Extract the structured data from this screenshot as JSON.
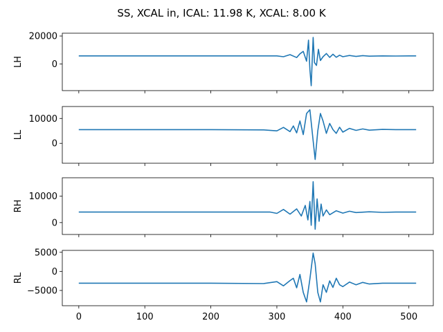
{
  "figure": {
    "title": "SS, XCAL in, ICAL: 11.98 K, XCAL: 8.00 K"
  },
  "chart_data": [
    {
      "type": "line",
      "ylabel": "LH",
      "xlim": [
        -25,
        537
      ],
      "ylim": [
        -19000,
        22000
      ],
      "yticks": [
        0,
        20000
      ],
      "baseline": 5800,
      "x_tick_labels_visible": false,
      "x": [
        0,
        100,
        200,
        300,
        310,
        320,
        330,
        335,
        340,
        345,
        348,
        350,
        352,
        355,
        357,
        360,
        363,
        366,
        370,
        375,
        380,
        385,
        390,
        395,
        400,
        410,
        420,
        430,
        440,
        460,
        480,
        500,
        511
      ],
      "y": [
        5800,
        5800,
        5800,
        5800,
        5200,
        6700,
        4600,
        7300,
        9000,
        2000,
        17000,
        -4000,
        -15500,
        19000,
        1000,
        -1000,
        10500,
        2500,
        5200,
        7500,
        4700,
        7000,
        4800,
        6300,
        5200,
        6100,
        5400,
        6000,
        5600,
        5800,
        5700,
        5800,
        5800
      ]
    },
    {
      "type": "line",
      "ylabel": "LL",
      "xlim": [
        -25,
        537
      ],
      "ylim": [
        -8000,
        14800
      ],
      "yticks": [
        0,
        10000
      ],
      "baseline": 5500,
      "x_tick_labels_visible": false,
      "x": [
        0,
        100,
        200,
        280,
        300,
        310,
        320,
        325,
        330,
        335,
        340,
        345,
        350,
        355,
        358,
        362,
        366,
        370,
        375,
        380,
        385,
        390,
        395,
        400,
        410,
        420,
        430,
        440,
        460,
        480,
        500,
        511
      ],
      "y": [
        5500,
        5500,
        5500,
        5400,
        5000,
        6400,
        4700,
        7000,
        4200,
        9000,
        3500,
        12000,
        13500,
        1000,
        -6500,
        5000,
        12000,
        9000,
        4000,
        8000,
        5500,
        4000,
        6500,
        4500,
        6000,
        5200,
        5800,
        5300,
        5600,
        5500,
        5500,
        5500
      ]
    },
    {
      "type": "line",
      "ylabel": "RH",
      "xlim": [
        -25,
        537
      ],
      "ylim": [
        -4500,
        17000
      ],
      "yticks": [
        0,
        10000
      ],
      "baseline": 4000,
      "x_tick_labels_visible": false,
      "x": [
        0,
        100,
        200,
        290,
        300,
        310,
        320,
        330,
        337,
        343,
        347,
        350,
        352,
        355,
        358,
        361,
        364,
        367,
        370,
        375,
        380,
        390,
        400,
        410,
        420,
        440,
        460,
        480,
        500,
        511
      ],
      "y": [
        4000,
        4000,
        4000,
        4000,
        3500,
        5000,
        3200,
        5200,
        2500,
        6500,
        1000,
        8000,
        -1000,
        15500,
        -2500,
        9000,
        500,
        7000,
        2500,
        4800,
        3000,
        4500,
        3600,
        4300,
        3800,
        4100,
        3900,
        4000,
        4000,
        4000
      ]
    },
    {
      "type": "line",
      "ylabel": "RL",
      "xlim": [
        -25,
        537
      ],
      "ylim": [
        -9000,
        5500
      ],
      "yticks": [
        -5000,
        0,
        5000
      ],
      "baseline": -3100,
      "x_tick_labels_visible": true,
      "xticks": [
        0,
        100,
        200,
        300,
        400,
        500
      ],
      "x": [
        0,
        100,
        200,
        280,
        300,
        310,
        320,
        325,
        330,
        335,
        340,
        345,
        350,
        355,
        358,
        362,
        366,
        370,
        375,
        380,
        385,
        390,
        395,
        400,
        410,
        420,
        430,
        440,
        460,
        480,
        500,
        511
      ],
      "y": [
        -3100,
        -3100,
        -3100,
        -3200,
        -2700,
        -3800,
        -2400,
        -1800,
        -4300,
        -800,
        -5500,
        -8000,
        -2000,
        4800,
        2000,
        -5500,
        -8000,
        -3500,
        -5500,
        -2500,
        -4200,
        -1800,
        -3500,
        -4000,
        -2800,
        -3500,
        -2900,
        -3300,
        -3100,
        -3100,
        -3100,
        -3100
      ]
    }
  ]
}
